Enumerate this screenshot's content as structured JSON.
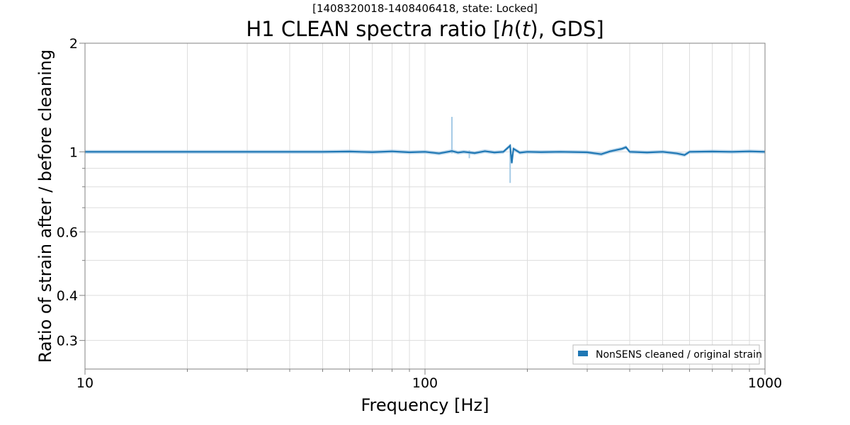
{
  "chart_data": {
    "type": "line",
    "subtitle": "[1408320018-1408406418, state: Locked]",
    "title": "H1 CLEAN spectra ratio [",
    "title_italic_h": "h",
    "title_paren_open": "(",
    "title_italic_t": "t",
    "title_rest": "), GDS]",
    "xlabel": "Frequency [Hz]",
    "ylabel": "Ratio of strain after / before cleaning",
    "xscale": "log",
    "yscale": "log",
    "xlim": [
      10,
      1000
    ],
    "ylim": [
      0.25,
      2
    ],
    "xticks": [
      10,
      100,
      1000
    ],
    "xtick_labels": [
      "10",
      "100",
      "1000"
    ],
    "yticks": [
      0.3,
      0.4,
      0.6,
      1,
      2
    ],
    "ytick_labels": [
      "0.3",
      "0.4",
      "0.6",
      "1",
      "2"
    ],
    "grid": true,
    "legend_position": "bottom-right",
    "colors": {
      "line": "#1f77b4",
      "band": "#a6cbe6",
      "grid": "#dddddd",
      "axes": "#808080"
    },
    "series": [
      {
        "name": "NonSENS cleaned / original strain",
        "x": [
          10,
          20,
          30,
          40,
          50,
          60,
          70,
          80,
          90,
          100,
          110,
          120,
          125,
          130,
          140,
          150,
          160,
          170,
          178,
          180,
          182,
          190,
          200,
          220,
          250,
          300,
          330,
          350,
          380,
          390,
          400,
          450,
          500,
          550,
          580,
          600,
          700,
          800,
          900,
          1000
        ],
        "y": [
          1.0,
          1.0,
          1.0,
          1.0,
          1.0,
          1.002,
          0.998,
          1.003,
          0.997,
          1.0,
          0.99,
          1.005,
          0.995,
          1.0,
          0.992,
          1.004,
          0.996,
          1.0,
          1.04,
          0.93,
          1.02,
          0.995,
          1.0,
          0.998,
          1.0,
          0.997,
          0.985,
          1.003,
          1.02,
          1.03,
          1.0,
          0.996,
          1.0,
          0.99,
          0.98,
          1.0,
          1.002,
          1.0,
          1.003,
          1.0
        ],
        "spikes": [
          {
            "x": 120,
            "upper": 1.25,
            "lower": 0.99
          },
          {
            "x": 135,
            "upper": 1.01,
            "lower": 0.96
          },
          {
            "x": 178,
            "upper": 1.05,
            "lower": 0.82
          }
        ]
      }
    ]
  }
}
